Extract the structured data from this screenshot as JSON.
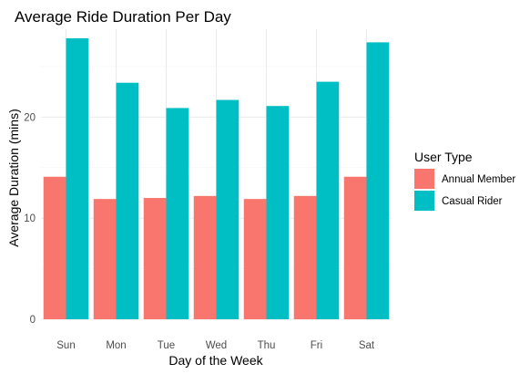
{
  "chart_data": {
    "type": "bar",
    "title": "Average Ride Duration Per Day",
    "xlabel": "Day of the Week",
    "ylabel": "Average Duration (mins)",
    "categories": [
      "Sun",
      "Mon",
      "Tue",
      "Wed",
      "Thu",
      "Fri",
      "Sat"
    ],
    "series": [
      {
        "name": "Annual Member",
        "color": "#F8766D",
        "values": [
          14.1,
          11.9,
          12.0,
          12.2,
          11.9,
          12.2,
          14.1
        ]
      },
      {
        "name": "Casual Rider",
        "color": "#00BFC4",
        "values": [
          27.8,
          23.4,
          20.9,
          21.7,
          21.1,
          23.5,
          27.4
        ]
      }
    ],
    "ylim": [
      0,
      28.7
    ],
    "yticks": [
      0,
      10,
      20
    ],
    "grid": true,
    "legend": {
      "title": "User Type",
      "position": "right"
    }
  }
}
